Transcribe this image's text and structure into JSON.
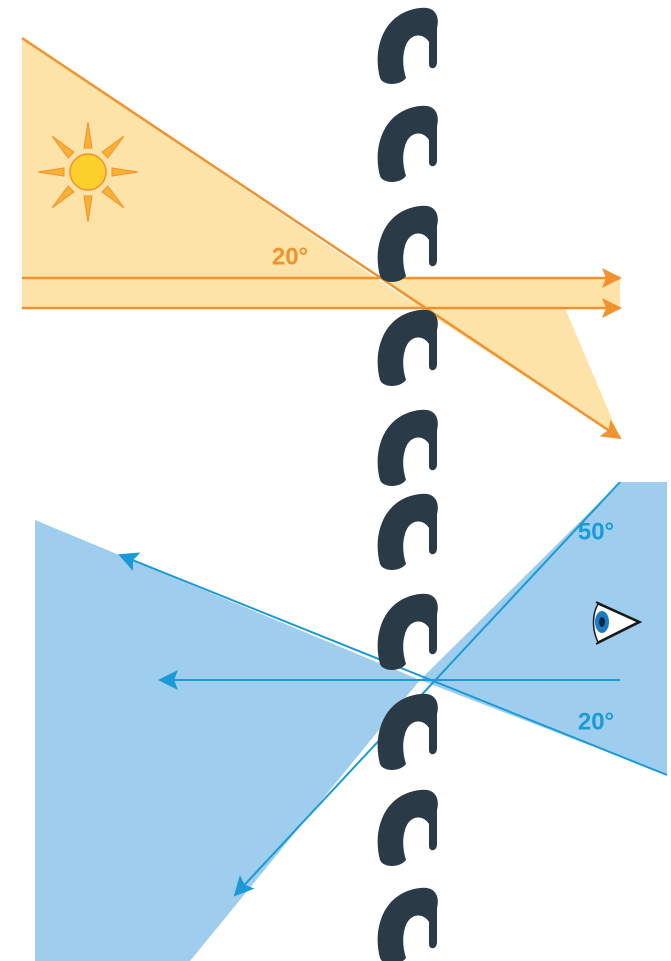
{
  "labels": {
    "sun_angle": "20°",
    "view_upper": "50°",
    "view_lower": "20°"
  }
}
